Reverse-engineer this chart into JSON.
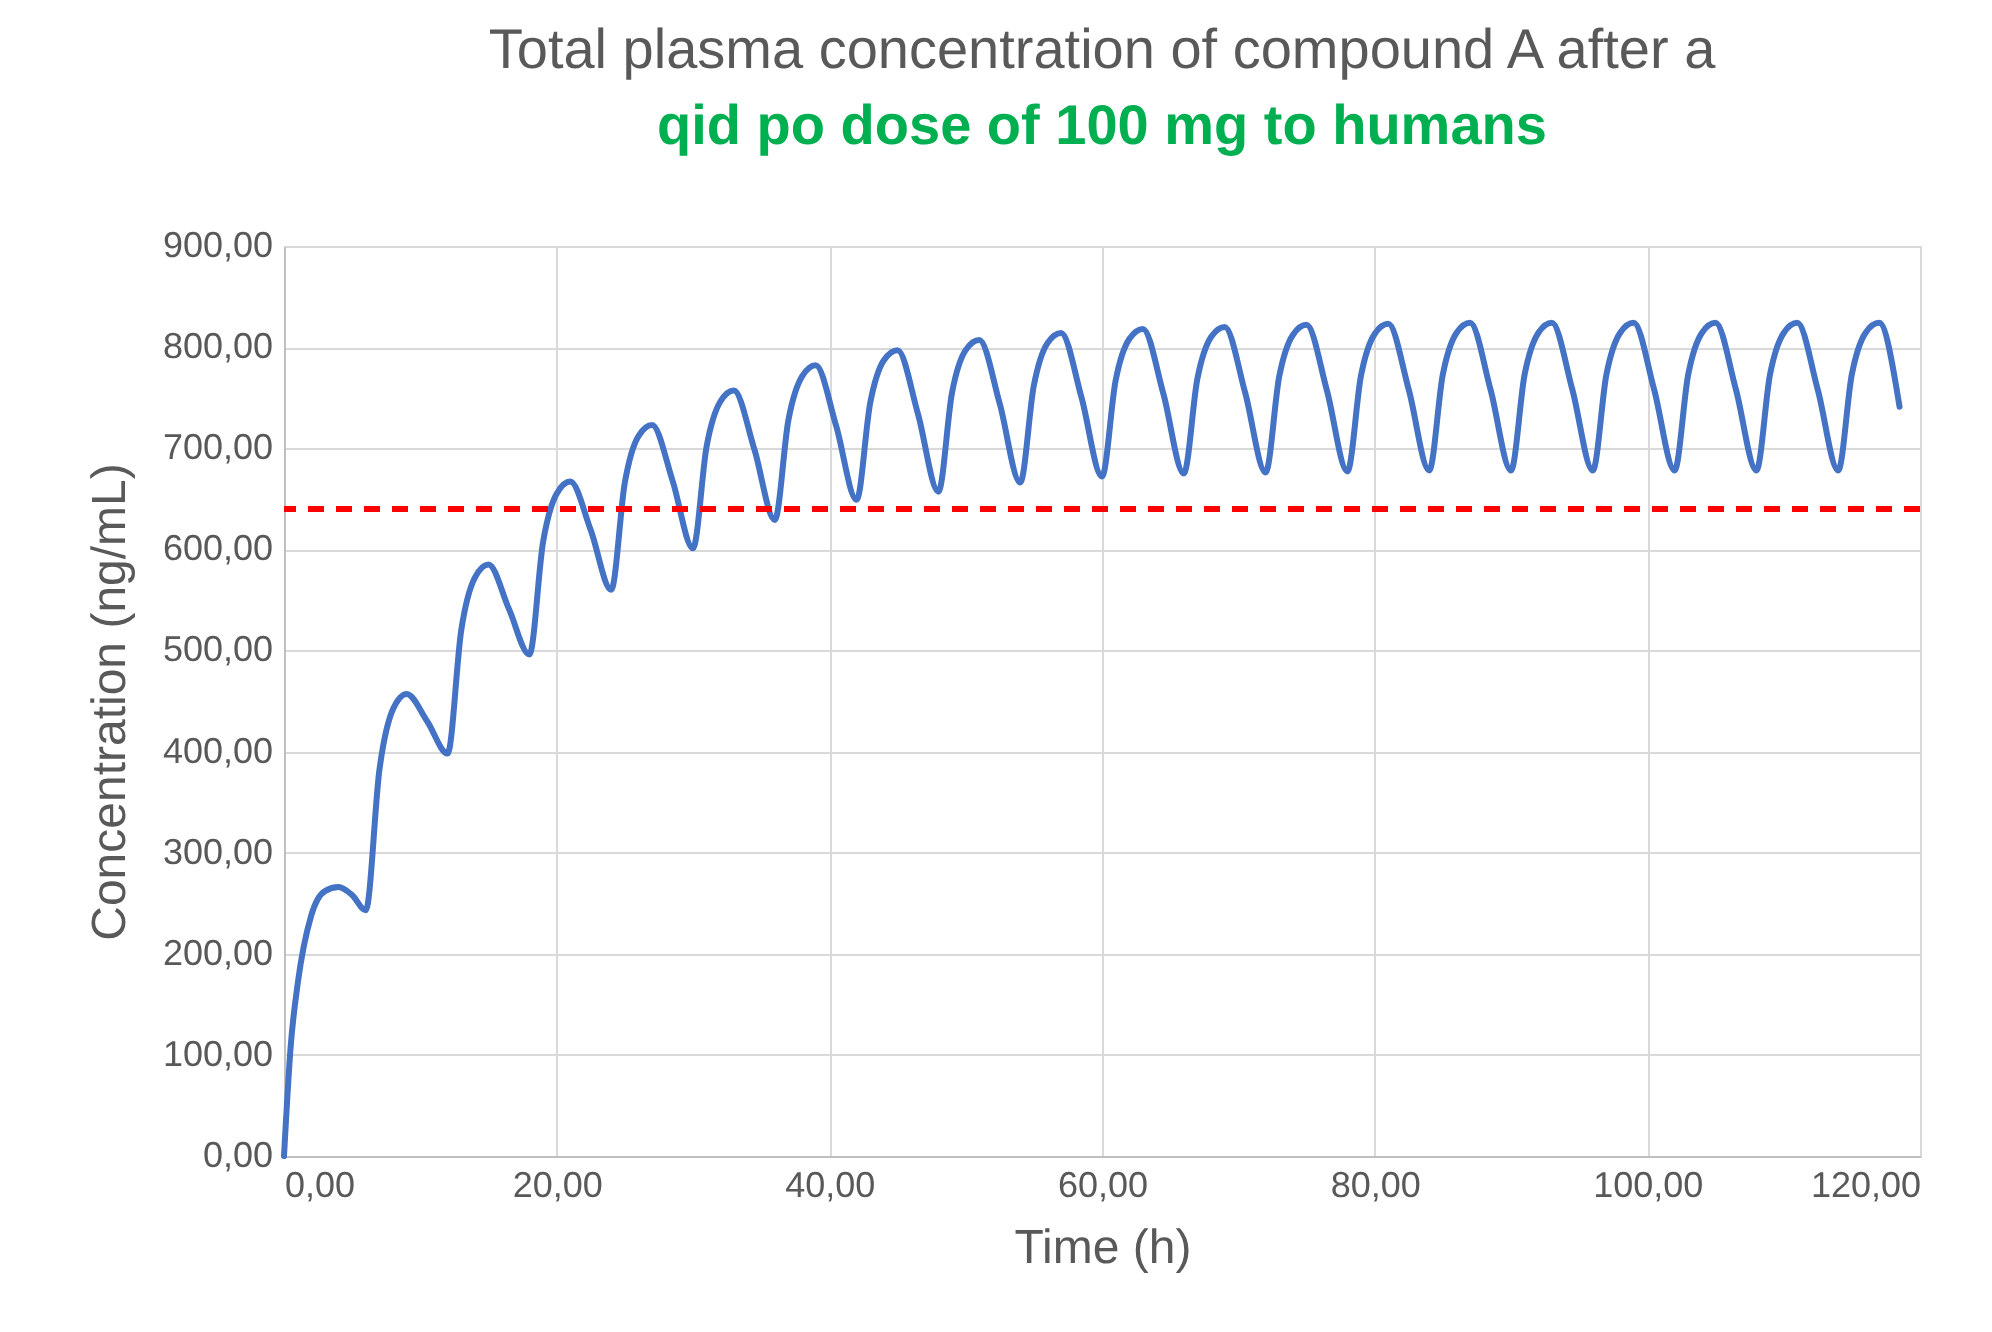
{
  "chart_data": {
    "type": "line",
    "title": "Total plasma concentration of compound A after a",
    "subtitle": "qid po dose of 100 mg to humans",
    "xlabel": "Time (h)",
    "ylabel": "Concentration (ng/mL)",
    "x": [
      0,
      0.5,
      1,
      2,
      3,
      4,
      5,
      6,
      7,
      8,
      9,
      10.5,
      12,
      13,
      14,
      15,
      16.5,
      18,
      19,
      20,
      21,
      22.5,
      24,
      25,
      26,
      27,
      28.5,
      30,
      31,
      32,
      33,
      34.5,
      36,
      37,
      38,
      39,
      40.5,
      42,
      43,
      44,
      45,
      46.5,
      48,
      49,
      50,
      51,
      52.5,
      54,
      55,
      56,
      57,
      58.5,
      60,
      61,
      62,
      63,
      64.5,
      66,
      67,
      68,
      69,
      70.5,
      72,
      73,
      74,
      75,
      76.5,
      78,
      79,
      80,
      81,
      82.5,
      84,
      85,
      86,
      87,
      88.5,
      90,
      91,
      92,
      93,
      94.5,
      96,
      97,
      98,
      99,
      100.5,
      102,
      103,
      104,
      105,
      106.5,
      108,
      109,
      110,
      111,
      112.5,
      114,
      115,
      116,
      117,
      118.5
    ],
    "series": [
      {
        "color": "#4472c4",
        "values": [
          0,
          110,
          170,
          238,
          262,
          266,
          258,
          243,
          382,
          442,
          457,
          430,
          398,
          520,
          572,
          585,
          541,
          496,
          607,
          655,
          667,
          619,
          560,
          666,
          712,
          723,
          668,
          601,
          702,
          746,
          757,
          699,
          629,
          728,
          771,
          782,
          722,
          649,
          745,
          787,
          797,
          734,
          657,
          755,
          797,
          807,
          744,
          666,
          762,
          804,
          814,
          750,
          672,
          767,
          808,
          818,
          754,
          675,
          769,
          810,
          820,
          755,
          676,
          771,
          812,
          822,
          757,
          677,
          772,
          813,
          823,
          758,
          678,
          773,
          814,
          824,
          758,
          678,
          773,
          814,
          824,
          758,
          678,
          773,
          814,
          824,
          758,
          678,
          773,
          814,
          824,
          758,
          678,
          773,
          814,
          824,
          758,
          678,
          773,
          814,
          824,
          741
        ]
      }
    ],
    "xlim": [
      0,
      120
    ],
    "ylim": [
      0,
      900
    ],
    "xticks": [
      {
        "value": 0,
        "label": "0,00"
      },
      {
        "value": 20,
        "label": "20,00"
      },
      {
        "value": 40,
        "label": "40,00"
      },
      {
        "value": 60,
        "label": "60,00"
      },
      {
        "value": 80,
        "label": "80,00"
      },
      {
        "value": 100,
        "label": "100,00"
      },
      {
        "value": 120,
        "label": "120,00"
      }
    ],
    "yticks": [
      {
        "value": 0,
        "label": "0,00"
      },
      {
        "value": 100,
        "label": "100,00"
      },
      {
        "value": 200,
        "label": "200,00"
      },
      {
        "value": 300,
        "label": "300,00"
      },
      {
        "value": 400,
        "label": "400,00"
      },
      {
        "value": 500,
        "label": "500,00"
      },
      {
        "value": 600,
        "label": "600,00"
      },
      {
        "value": 700,
        "label": "700,00"
      },
      {
        "value": 800,
        "label": "800,00"
      },
      {
        "value": 900,
        "label": "900,00"
      }
    ],
    "ref_lines": [
      {
        "axis": "y",
        "value": 640,
        "color": "#ff0000",
        "line_style": "dashed"
      }
    ],
    "grid": true,
    "marker": "none",
    "line_style": "solid"
  }
}
